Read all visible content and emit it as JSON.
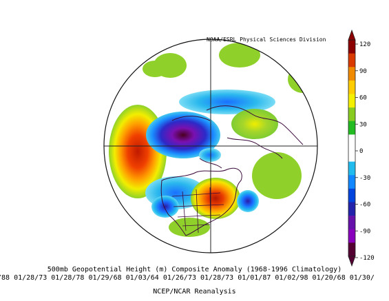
{
  "credit": "NOAA/ESRL Physical Sciences Division",
  "title": "500mb Geopotential Height (m) Composite Anomaly (1968-1996 Climatology)",
  "dates": "/88 01/28/73 01/28/78 01/29/68 01/03/64 01/26/73 01/28/73 01/01/87 01/02/98 01/20/68 01/30/",
  "source": "NCEP/NCAR Reanalysis",
  "colorbar": {
    "ticks": [
      "120",
      "90",
      "60",
      "30",
      "0",
      "-30",
      "-60",
      "-90",
      "-120"
    ],
    "colors": [
      "#8b0000",
      "#d83a00",
      "#f08a00",
      "#ffcc00",
      "#f5f000",
      "#88cc22",
      "#22bb22",
      "#ffffff",
      "#ffffff",
      "#22bbee",
      "#1188ff",
      "#0044dd",
      "#2222aa",
      "#6611aa",
      "#8800bb",
      "#550033"
    ]
  }
}
